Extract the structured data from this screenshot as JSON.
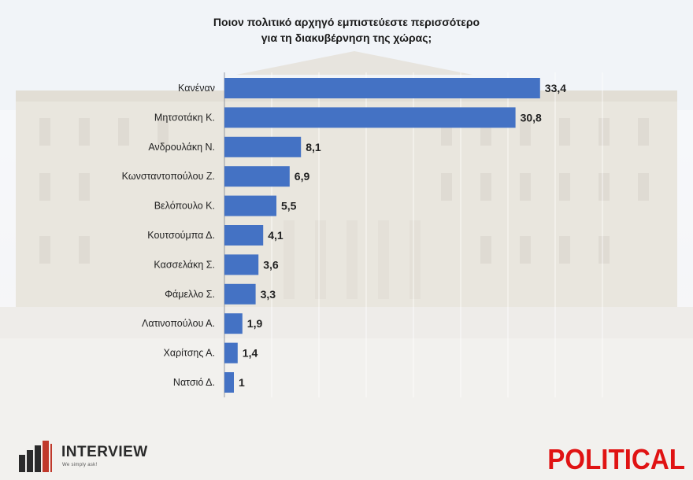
{
  "chart_data": {
    "type": "bar",
    "orientation": "horizontal",
    "title": "Ποιον πολιτικό αρχηγό εμπιστεύεστε περισσότερο\nγια τη διακυβέρνηση της χώρας;",
    "categories": [
      "Κανέναν",
      "Μητσοτάκη Κ.",
      "Ανδρουλάκη Ν.",
      "Κωνσταντοπούλου Ζ.",
      "Βελόπουλο Κ.",
      "Κουτσούμπα Δ.",
      "Κασσελάκη Σ.",
      "Φάμελλο Σ.",
      "Λατινοπούλου Α.",
      "Χαρίτσης Α.",
      "Νατσιό Δ."
    ],
    "values": [
      33.4,
      30.8,
      8.1,
      6.9,
      5.5,
      4.1,
      3.6,
      3.3,
      1.9,
      1.4,
      1
    ],
    "value_labels": [
      "33,4",
      "30,8",
      "8,1",
      "6,9",
      "5,5",
      "4,1",
      "3,6",
      "3,3",
      "1,9",
      "1,4",
      "1"
    ],
    "xlim": [
      0,
      40
    ],
    "grid": true,
    "bar_color": "#4472c4"
  },
  "logos": {
    "interview_name": "INTERVIEW",
    "interview_tagline": "We simply ask!",
    "political": "POLITICAL"
  },
  "colors": {
    "political_red": "#e01313"
  }
}
